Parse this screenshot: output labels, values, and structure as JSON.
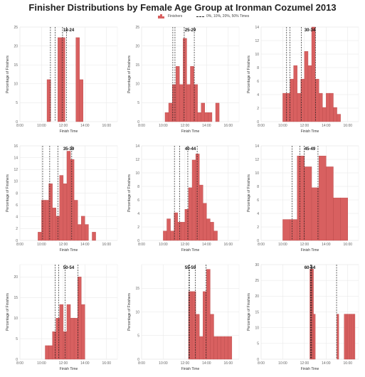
{
  "title": "Finisher Distributions by Female Age Group at Ironman Cozumel 2013",
  "legend": {
    "finishers_label": "Finishers",
    "percentiles_label": "0%, 10%, 20%, 50% Times"
  },
  "colors": {
    "bar_fill": "#d86060",
    "bar_stroke": "#b94a4a",
    "grid": "#e6e6e6",
    "vline": "#222222"
  },
  "chart_data": [
    {
      "type": "bar",
      "title": "18-24",
      "xlabel": "Finish Time",
      "ylabel": "Percentage of Finishers",
      "xlim": [
        "8:00",
        "17:00"
      ],
      "xticks": [
        "8:00",
        "10:00",
        "12:00",
        "14:00",
        "16:00"
      ],
      "ylim": [
        0,
        25
      ],
      "yticks": [
        0,
        5,
        10,
        15,
        20,
        25
      ],
      "bin_start": "10:30",
      "bin_width_minutes": 20,
      "values": [
        11.1,
        0,
        0,
        22.2,
        22.2,
        0,
        0,
        0,
        22.2,
        11.1
      ],
      "percentile_times": [
        "10:49",
        "11:15",
        "11:56",
        "12:18"
      ]
    },
    {
      "type": "bar",
      "title": "25-29",
      "xlabel": "Finish Time",
      "ylabel": "Percentage of Finishers",
      "xlim": [
        "8:00",
        "17:00"
      ],
      "xticks": [
        "8:00",
        "10:00",
        "12:00",
        "14:00",
        "16:00"
      ],
      "ylim": [
        0,
        25
      ],
      "yticks": [
        0,
        5,
        10,
        15,
        20,
        25
      ],
      "bin_start": "10:10",
      "bin_width_minutes": 20,
      "values": [
        2.4,
        4.9,
        9.8,
        14.6,
        9.8,
        22.0,
        9.8,
        14.6,
        9.8,
        2.4,
        4.9,
        2.4,
        2.4,
        0,
        4.9
      ],
      "percentile_times": [
        "10:53",
        "11:05",
        "11:56",
        "12:52"
      ]
    },
    {
      "type": "bar",
      "title": "30-34",
      "xlabel": "Finish Time",
      "ylabel": "Percentage of Finishers",
      "xlim": [
        "8:00",
        "17:00"
      ],
      "xticks": [
        "8:00",
        "10:00",
        "12:00",
        "14:00",
        "16:00"
      ],
      "ylim": [
        0,
        14
      ],
      "yticks": [
        0,
        2,
        4,
        6,
        8,
        10,
        12,
        14
      ],
      "bin_start": "10:00",
      "bin_width_minutes": 20,
      "values": [
        4.2,
        4.2,
        6.3,
        8.3,
        4.2,
        6.3,
        10.4,
        8.3,
        14.6,
        6.3,
        4.2,
        2.1,
        4.2,
        4.2,
        2.1,
        1.1
      ],
      "percentile_times": [
        "10:21",
        "10:40",
        "11:43",
        "13:01"
      ]
    },
    {
      "type": "bar",
      "title": "35-39",
      "xlabel": "Finish Time",
      "ylabel": "Percentage of Finishers",
      "xlim": [
        "8:00",
        "17:00"
      ],
      "xticks": [
        "8:00",
        "10:00",
        "12:00",
        "14:00",
        "16:00"
      ],
      "ylim": [
        0,
        16
      ],
      "yticks": [
        0,
        2,
        4,
        6,
        8,
        10,
        12,
        14,
        16
      ],
      "bin_start": "9:40",
      "bin_width_minutes": 20,
      "values": [
        1.4,
        6.8,
        6.8,
        9.6,
        5.5,
        4.1,
        11.0,
        9.6,
        15.1,
        13.7,
        6.8,
        2.7,
        4.1,
        2.7,
        0,
        1.4
      ],
      "percentile_times": [
        "10:06",
        "10:45",
        "11:30",
        "12:47"
      ]
    },
    {
      "type": "bar",
      "title": "40-44",
      "xlabel": "Finish Time",
      "ylabel": "Percentage of Finishers",
      "xlim": [
        "8:00",
        "17:00"
      ],
      "xticks": [
        "8:00",
        "10:00",
        "12:00",
        "14:00",
        "16:00"
      ],
      "ylim": [
        0,
        14
      ],
      "yticks": [
        0,
        2,
        4,
        6,
        8,
        10,
        12,
        14
      ],
      "bin_start": "9:40",
      "bin_width_minutes": 20,
      "values": [
        0,
        1.4,
        3.2,
        1.4,
        4.1,
        2.7,
        2.7,
        4.6,
        7.8,
        11.9,
        12.8,
        8.2,
        5.5,
        3.2,
        2.7,
        1.4
      ],
      "percentile_times": [
        "11:02",
        "11:31",
        "12:16",
        "13:08"
      ]
    },
    {
      "type": "bar",
      "title": "45-49",
      "xlabel": "Finish Time",
      "ylabel": "Percentage of Finishers",
      "xlim": [
        "8:00",
        "17:00"
      ],
      "xticks": [
        "8:00",
        "10:00",
        "12:00",
        "14:00",
        "16:00"
      ],
      "ylim": [
        0,
        14
      ],
      "yticks": [
        0,
        2,
        4,
        6,
        8,
        10,
        12,
        14
      ],
      "bin_start": "10:00",
      "bin_width_minutes": 40,
      "values": [
        3.1,
        3.1,
        12.5,
        10.9,
        7.8,
        12.5,
        10.9,
        6.3,
        6.3
      ],
      "percentile_times": [
        "10:52",
        "11:35",
        "11:58",
        "13:15"
      ]
    },
    {
      "type": "bar",
      "title": "50-54",
      "xlabel": "Finish Time",
      "ylabel": "Percentage of Finishers",
      "xlim": [
        "8:00",
        "17:00"
      ],
      "xticks": [
        "8:00",
        "10:00",
        "12:00",
        "14:00",
        "16:00"
      ],
      "ylim": [
        0,
        23
      ],
      "yticks": [
        0,
        5,
        10,
        15,
        20
      ],
      "bin_start": "10:20",
      "bin_width_minutes": 20,
      "values": [
        3.3,
        3.3,
        6.7,
        10.0,
        13.3,
        6.7,
        13.3,
        10.0,
        10.0,
        20.0,
        13.3
      ],
      "percentile_times": [
        "11:15",
        "11:35",
        "12:10",
        "13:22"
      ]
    },
    {
      "type": "bar",
      "title": "55-59",
      "xlabel": "Finish Time",
      "ylabel": "Percentage of Finishers",
      "xlim": [
        "8:00",
        "17:00"
      ],
      "xticks": [
        "8:00",
        "10:00",
        "12:00",
        "14:00",
        "16:00"
      ],
      "ylim": [
        0,
        20
      ],
      "yticks": [
        0,
        5,
        10,
        15
      ],
      "bin_start": "12:20",
      "bin_width_minutes": 20,
      "values": [
        14.3,
        14.3,
        9.5,
        4.8,
        14.3,
        19.0,
        9.5,
        4.8,
        4.8,
        4.8,
        4.8,
        4.8
      ],
      "percentile_times": [
        "12:22",
        "12:25",
        "12:58",
        "13:57"
      ]
    },
    {
      "type": "bar",
      "title": "60-64",
      "xlabel": "Finish Time",
      "ylabel": "Percentage of Finishers",
      "xlim": [
        "8:00",
        "17:00"
      ],
      "xticks": [
        "8:00",
        "10:00",
        "12:00",
        "14:00",
        "16:00"
      ],
      "ylim": [
        0,
        30
      ],
      "yticks": [
        0,
        5,
        10,
        15,
        20,
        25,
        30
      ],
      "bin_start": "12:30",
      "bin_width_minutes": 10,
      "values": [
        28.6,
        28.6,
        14.3,
        0,
        0,
        0,
        0,
        0,
        0,
        0,
        0,
        0,
        0,
        0,
        0,
        14.3,
        0,
        0,
        0,
        14.3,
        14.3,
        14.3,
        14.3,
        14.3,
        14.3
      ],
      "percentile_times": [
        "12:34",
        "12:36",
        "12:40",
        "14:58"
      ]
    }
  ]
}
